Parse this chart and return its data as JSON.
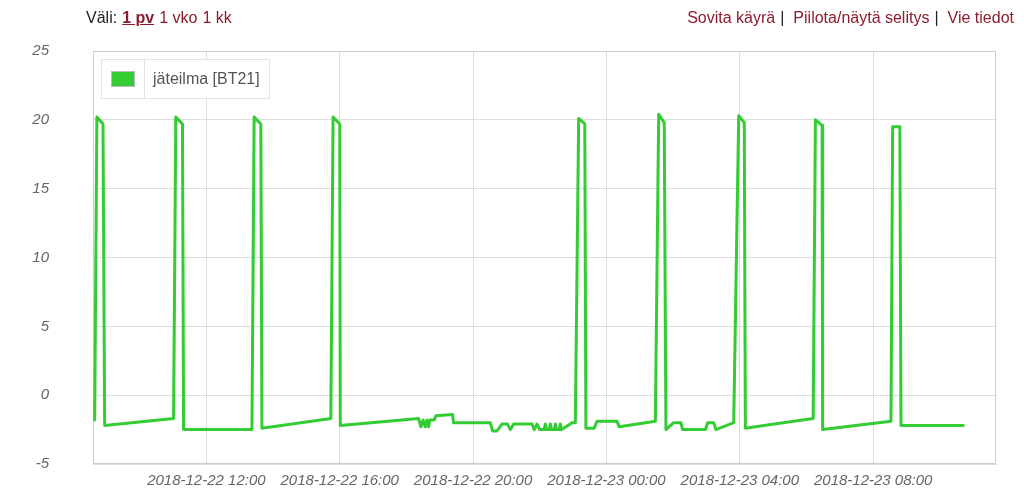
{
  "chart_data": {
    "type": "line",
    "annotations": [
      "Väli:",
      "1 pv",
      "1 vko",
      "1 kk",
      "Sovita käyrä",
      "|",
      "Piilota/näytä selitys",
      "|",
      "Vie tiedot"
    ],
    "x": [
      "2018-12-22T08:39",
      "2018-12-22T08:43",
      "2018-12-22T08:54",
      "2018-12-22T08:57",
      "2018-12-22T11:01",
      "2018-12-22T11:05",
      "2018-12-22T11:17",
      "2018-12-22T11:19",
      "2018-12-22T13:22",
      "2018-12-22T13:26",
      "2018-12-22T13:38",
      "2018-12-22T13:40",
      "2018-12-22T15:44",
      "2018-12-22T15:48",
      "2018-12-22T16:00",
      "2018-12-22T16:01",
      "2018-12-22T18:22",
      "2018-12-22T18:26",
      "2018-12-22T18:30",
      "2018-12-22T18:34",
      "2018-12-22T18:37",
      "2018-12-22T18:40",
      "2018-12-22T18:42",
      "2018-12-22T18:50",
      "2018-12-22T18:53",
      "2018-12-22T19:23",
      "2018-12-22T19:25",
      "2018-12-22T20:31",
      "2018-12-22T20:35",
      "2018-12-22T20:43",
      "2018-12-22T20:52",
      "2018-12-22T21:02",
      "2018-12-22T21:07",
      "2018-12-22T21:13",
      "2018-12-22T21:46",
      "2018-12-22T21:50",
      "2018-12-22T21:55",
      "2018-12-22T22:00",
      "2018-12-22T22:08",
      "2018-12-22T22:10",
      "2018-12-22T22:12",
      "2018-12-22T22:17",
      "2018-12-22T22:19",
      "2018-12-22T22:21",
      "2018-12-22T22:26",
      "2018-12-22T22:28",
      "2018-12-22T22:30",
      "2018-12-22T22:35",
      "2018-12-22T22:37",
      "2018-12-22T22:39",
      "2018-12-22T22:43",
      "2018-12-22T22:58",
      "2018-12-22T23:04",
      "2018-12-22T23:10",
      "2018-12-22T23:21",
      "2018-12-22T23:23",
      "2018-12-22T23:38",
      "2018-12-22T23:43",
      "2018-12-23T00:19",
      "2018-12-23T00:23",
      "2018-12-23T01:28",
      "2018-12-23T01:34",
      "2018-12-23T01:44",
      "2018-12-23T01:47",
      "2018-12-23T02:01",
      "2018-12-23T02:14",
      "2018-12-23T02:17",
      "2018-12-23T02:58",
      "2018-12-23T03:02",
      "2018-12-23T03:13",
      "2018-12-23T03:17",
      "2018-12-23T03:49",
      "2018-12-23T03:58",
      "2018-12-23T04:08",
      "2018-12-23T04:10",
      "2018-12-23T06:12",
      "2018-12-23T06:16",
      "2018-12-23T06:28",
      "2018-12-23T06:29",
      "2018-12-23T08:32",
      "2018-12-23T08:35",
      "2018-12-23T08:48",
      "2018-12-23T08:50",
      "2018-12-23T10:42"
    ],
    "series": [
      {
        "name": "jäteilma [BT21]",
        "color": "#33cc33",
        "values": [
          -1.8,
          20.2,
          19.7,
          -2.2,
          -1.7,
          20.2,
          19.7,
          -2.5,
          -2.5,
          20.2,
          19.7,
          -2.4,
          -1.7,
          20.2,
          19.7,
          -2.2,
          -1.7,
          -2.3,
          -1.8,
          -2.3,
          -1.8,
          -2.3,
          -1.8,
          -1.8,
          -1.5,
          -1.4,
          -2.0,
          -2.0,
          -2.6,
          -2.6,
          -2.1,
          -2.1,
          -2.5,
          -2.1,
          -2.1,
          -2.5,
          -2.1,
          -2.5,
          -2.5,
          -2.1,
          -2.5,
          -2.5,
          -2.1,
          -2.5,
          -2.5,
          -2.1,
          -2.5,
          -2.5,
          -2.1,
          -2.5,
          -2.4,
          -2.0,
          -2.0,
          20.1,
          19.7,
          -2.4,
          -2.4,
          -1.9,
          -1.9,
          -2.3,
          -1.9,
          20.4,
          19.8,
          -2.5,
          -2.0,
          -2.0,
          -2.5,
          -2.5,
          -2.0,
          -2.0,
          -2.5,
          -2.0,
          20.3,
          19.8,
          -2.4,
          -1.7,
          20.0,
          19.6,
          -2.5,
          -1.9,
          19.5,
          19.5,
          -2.2,
          -2.2
        ]
      }
    ],
    "xlim": [
      "2018-12-22T08:36",
      "2018-12-23T11:41"
    ],
    "xticks": [
      {
        "value": "2018-12-22T12:00",
        "label": "2018-12-22 12:00"
      },
      {
        "value": "2018-12-22T16:00",
        "label": "2018-12-22 16:00"
      },
      {
        "value": "2018-12-22T20:00",
        "label": "2018-12-22 20:00"
      },
      {
        "value": "2018-12-23T00:00",
        "label": "2018-12-23 00:00"
      },
      {
        "value": "2018-12-23T04:00",
        "label": "2018-12-23 04:00"
      },
      {
        "value": "2018-12-23T08:00",
        "label": "2018-12-23 08:00"
      }
    ],
    "ylim": [
      -5,
      25
    ],
    "yticks": [
      -5,
      0,
      5,
      10,
      15,
      20,
      25
    ],
    "grid": true,
    "legend": "top left"
  }
}
